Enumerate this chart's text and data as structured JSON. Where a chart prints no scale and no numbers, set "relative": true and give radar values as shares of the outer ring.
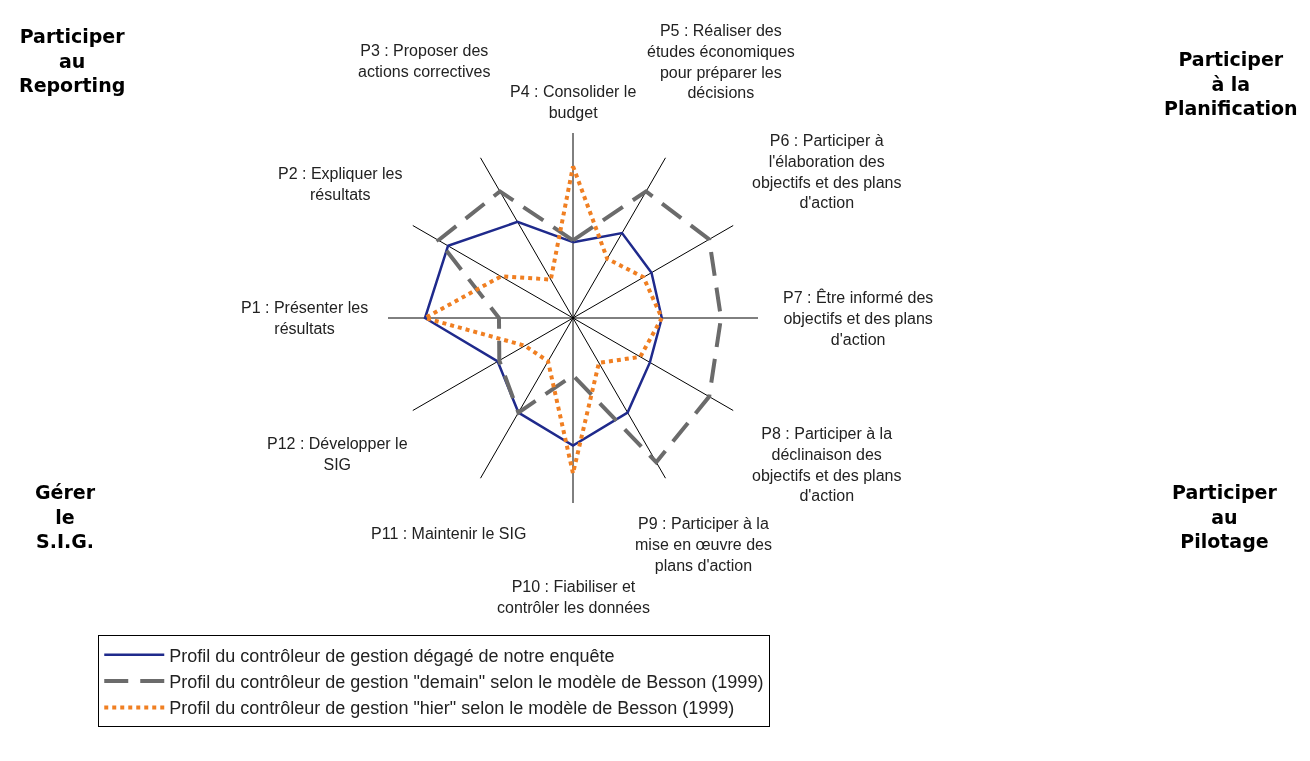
{
  "chart_data": {
    "type": "radar",
    "relative": true,
    "grid": true,
    "legend": "bottom",
    "marker": "none",
    "categories": [
      "P4 : Consolider le budget",
      "P5 : Réaliser des études économiques pour préparer les décisions",
      "P6 : Participer à l'élaboration des objectifs et des plans d'action",
      "P7 : Être informé des objectifs et des plans d'action",
      "P8 : Participer à la déclinaison des objectifs et des plans d'action",
      "P9 : Participer à la mise en œuvre des plans d'action",
      "P10 : Fiabiliser et contrôler les données",
      "P11 : Maintenir le SIG",
      "P12 : Développer le SIG",
      "P1 : Présenter les résultats",
      "P2 : Expliquer les résultats",
      "P3 : Proposer des actions correctives"
    ],
    "series": [
      {
        "name": "Profil du contrôleur de gestion dégagé de notre enquête",
        "color": "#1f2a8c",
        "line_style": "solid",
        "values": [
          0.41,
          0.53,
          0.49,
          0.48,
          0.48,
          0.59,
          0.69,
          0.59,
          0.47,
          0.8,
          0.78,
          0.6
        ]
      },
      {
        "name": "Profil du contrôleur de gestion \"demain\" selon le modèle de Besson (1999)",
        "color": "#6b6b6b",
        "line_style": "dashed",
        "values": [
          0.42,
          0.79,
          0.85,
          0.8,
          0.85,
          0.9,
          0.31,
          0.59,
          0.46,
          0.4,
          0.84,
          0.79
        ]
      },
      {
        "name": "Profil du contrôleur de gestion \"hier\" selon le modèle de Besson (1999)",
        "color": "#f07f22",
        "line_style": "dotted",
        "values": [
          0.82,
          0.37,
          0.44,
          0.48,
          0.42,
          0.28,
          0.84,
          0.27,
          0.3,
          0.8,
          0.45,
          0.24
        ]
      }
    ],
    "annotations": [
      "Participer\nau\nReporting",
      "Participer\nà la\nPlanification",
      "Gérer\nle\nS.I.G.",
      "Participer\nau\nPilotage"
    ]
  }
}
